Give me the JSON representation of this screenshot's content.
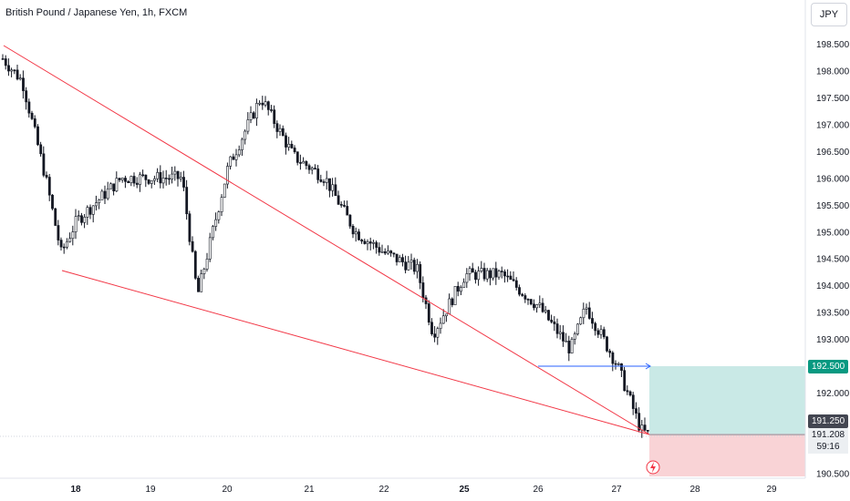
{
  "title": "British Pound / Japanese Yen, 1h, FXCM",
  "currency_button": "JPY",
  "price_labels": {
    "target": "192.500",
    "current": "191.250",
    "last": "191.208",
    "countdown": "59:16"
  },
  "colors": {
    "up": "#131722",
    "down": "#131722",
    "trendline": "#f23645",
    "horizontal": "#2962ff",
    "profit_zone": "#b2dfdb",
    "loss_zone": "#f8c8cc",
    "target_label": "#089981",
    "current_label": "#434651"
  },
  "chart_data": {
    "type": "candlestick",
    "title": "British Pound / Japanese Yen, 1h, FXCM",
    "y_ticks": [
      "198.500",
      "198.000",
      "197.500",
      "197.000",
      "196.500",
      "196.000",
      "195.500",
      "195.000",
      "194.500",
      "194.000",
      "193.500",
      "193.000",
      "192.000",
      "190.500"
    ],
    "x_ticks": [
      "18",
      "19",
      "20",
      "21",
      "22",
      "25",
      "26",
      "27",
      "28",
      "29"
    ],
    "ylim": [
      190.45,
      198.85
    ],
    "approx_close_path": [
      {
        "x": "17",
        "close": 198.3
      },
      {
        "x": "17.3",
        "close": 197.8
      },
      {
        "x": "17.6",
        "close": 196.0
      },
      {
        "x": "17.8",
        "close": 194.6
      },
      {
        "x": "18",
        "close": 195.2
      },
      {
        "x": "18.6",
        "close": 196.0
      },
      {
        "x": "19.4",
        "close": 196.0
      },
      {
        "x": "19.6",
        "close": 193.8
      },
      {
        "x": "20",
        "close": 196.2
      },
      {
        "x": "20.4",
        "close": 197.5
      },
      {
        "x": "20.8",
        "close": 196.4
      },
      {
        "x": "21.2",
        "close": 196.0
      },
      {
        "x": "21.6",
        "close": 195.0
      },
      {
        "x": "22",
        "close": 194.6
      },
      {
        "x": "22.4",
        "close": 194.3
      },
      {
        "x": "22.6",
        "close": 193.1
      },
      {
        "x": "25",
        "close": 194.2
      },
      {
        "x": "25.5",
        "close": 194.2
      },
      {
        "x": "26",
        "close": 193.6
      },
      {
        "x": "26.4",
        "close": 192.8
      },
      {
        "x": "26.6",
        "close": 193.6
      },
      {
        "x": "27",
        "close": 192.5
      },
      {
        "x": "27.3",
        "close": 191.3
      },
      {
        "x": "27.4",
        "close": 191.21
      }
    ],
    "drawings": {
      "upper_trendline": [
        {
          "x": "17",
          "y": 198.5
        },
        {
          "x": "27.4",
          "y": 191.25
        }
      ],
      "lower_trendline": [
        {
          "x": "17.8",
          "y": 194.3
        },
        {
          "x": "27.4",
          "y": 191.25
        }
      ],
      "horizontal_level": 192.5,
      "long_position": {
        "entry": 191.25,
        "target": 192.5,
        "stop": 190.5
      }
    }
  }
}
